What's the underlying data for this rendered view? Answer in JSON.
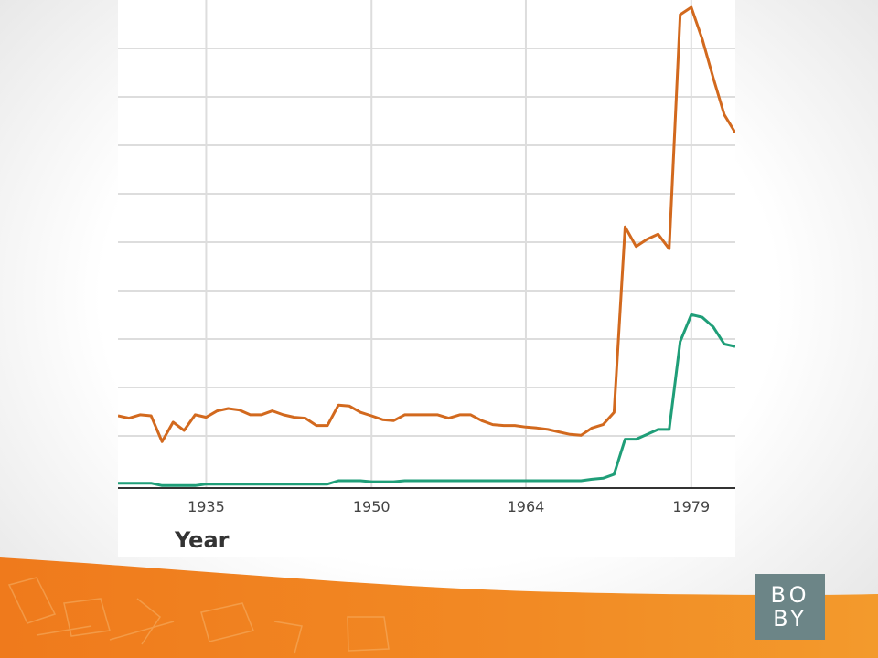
{
  "logo": {
    "line1": "BO",
    "line2": "BY"
  },
  "colors": {
    "orange_series": "#d2691e",
    "green_series": "#1f9e78",
    "footer_orange": "#ef7f1e",
    "logo_bg": "#6c8587"
  },
  "chart_data": {
    "type": "line",
    "title": "",
    "xlabel": "Year",
    "ylabel": "",
    "x_ticks": [
      1935,
      1950,
      1964,
      1979
    ],
    "xlim": [
      1927,
      1983
    ],
    "ylim": [
      0,
      100
    ],
    "grid": true,
    "legend": "none",
    "series": [
      {
        "color": "#d2691e",
        "x": [
          1927,
          1928,
          1929,
          1930,
          1931,
          1932,
          1933,
          1934,
          1935,
          1936,
          1937,
          1938,
          1939,
          1940,
          1941,
          1942,
          1943,
          1944,
          1945,
          1946,
          1947,
          1948,
          1949,
          1950,
          1951,
          1952,
          1953,
          1954,
          1955,
          1956,
          1957,
          1958,
          1959,
          1960,
          1961,
          1962,
          1963,
          1964,
          1965,
          1966,
          1967,
          1968,
          1969,
          1970,
          1971,
          1972,
          1973,
          1974,
          1975,
          1976,
          1977,
          1978,
          1979,
          1980,
          1981,
          1982,
          1983
        ],
        "values": [
          14.8,
          14.3,
          15.0,
          14.8,
          9.5,
          13.5,
          11.8,
          15.0,
          14.5,
          15.8,
          16.3,
          16.0,
          15.0,
          15.0,
          15.8,
          15.0,
          14.5,
          14.3,
          12.8,
          12.8,
          17.0,
          16.8,
          15.5,
          14.8,
          14.0,
          13.8,
          15.0,
          15.0,
          15.0,
          15.0,
          14.3,
          15.0,
          15.0,
          13.8,
          13.0,
          12.8,
          12.8,
          12.5,
          12.3,
          12.0,
          11.5,
          11.0,
          10.8,
          12.3,
          13.0,
          15.5,
          53.5,
          49.5,
          51.0,
          52.0,
          49.0,
          97.0,
          98.5,
          92.0,
          84.0,
          76.5,
          72.8
        ]
      },
      {
        "color": "#1f9e78",
        "x": [
          1927,
          1928,
          1929,
          1930,
          1931,
          1932,
          1933,
          1934,
          1935,
          1936,
          1937,
          1938,
          1939,
          1940,
          1941,
          1942,
          1943,
          1944,
          1945,
          1946,
          1947,
          1948,
          1949,
          1950,
          1951,
          1952,
          1953,
          1954,
          1955,
          1956,
          1957,
          1958,
          1959,
          1960,
          1961,
          1962,
          1963,
          1964,
          1965,
          1966,
          1967,
          1968,
          1969,
          1970,
          1971,
          1972,
          1973,
          1974,
          1975,
          1976,
          1977,
          1978,
          1979,
          1980,
          1981,
          1982,
          1983
        ],
        "values": [
          1.0,
          1.0,
          1.0,
          1.0,
          0.5,
          0.5,
          0.5,
          0.5,
          0.8,
          0.8,
          0.8,
          0.8,
          0.8,
          0.8,
          0.8,
          0.8,
          0.8,
          0.8,
          0.8,
          0.8,
          1.5,
          1.5,
          1.5,
          1.3,
          1.3,
          1.3,
          1.5,
          1.5,
          1.5,
          1.5,
          1.5,
          1.5,
          1.5,
          1.5,
          1.5,
          1.5,
          1.5,
          1.5,
          1.5,
          1.5,
          1.5,
          1.5,
          1.5,
          1.8,
          2.0,
          2.8,
          10.0,
          10.0,
          11.0,
          12.0,
          12.0,
          30.0,
          35.5,
          35.0,
          33.0,
          29.5,
          29.0
        ]
      }
    ]
  }
}
